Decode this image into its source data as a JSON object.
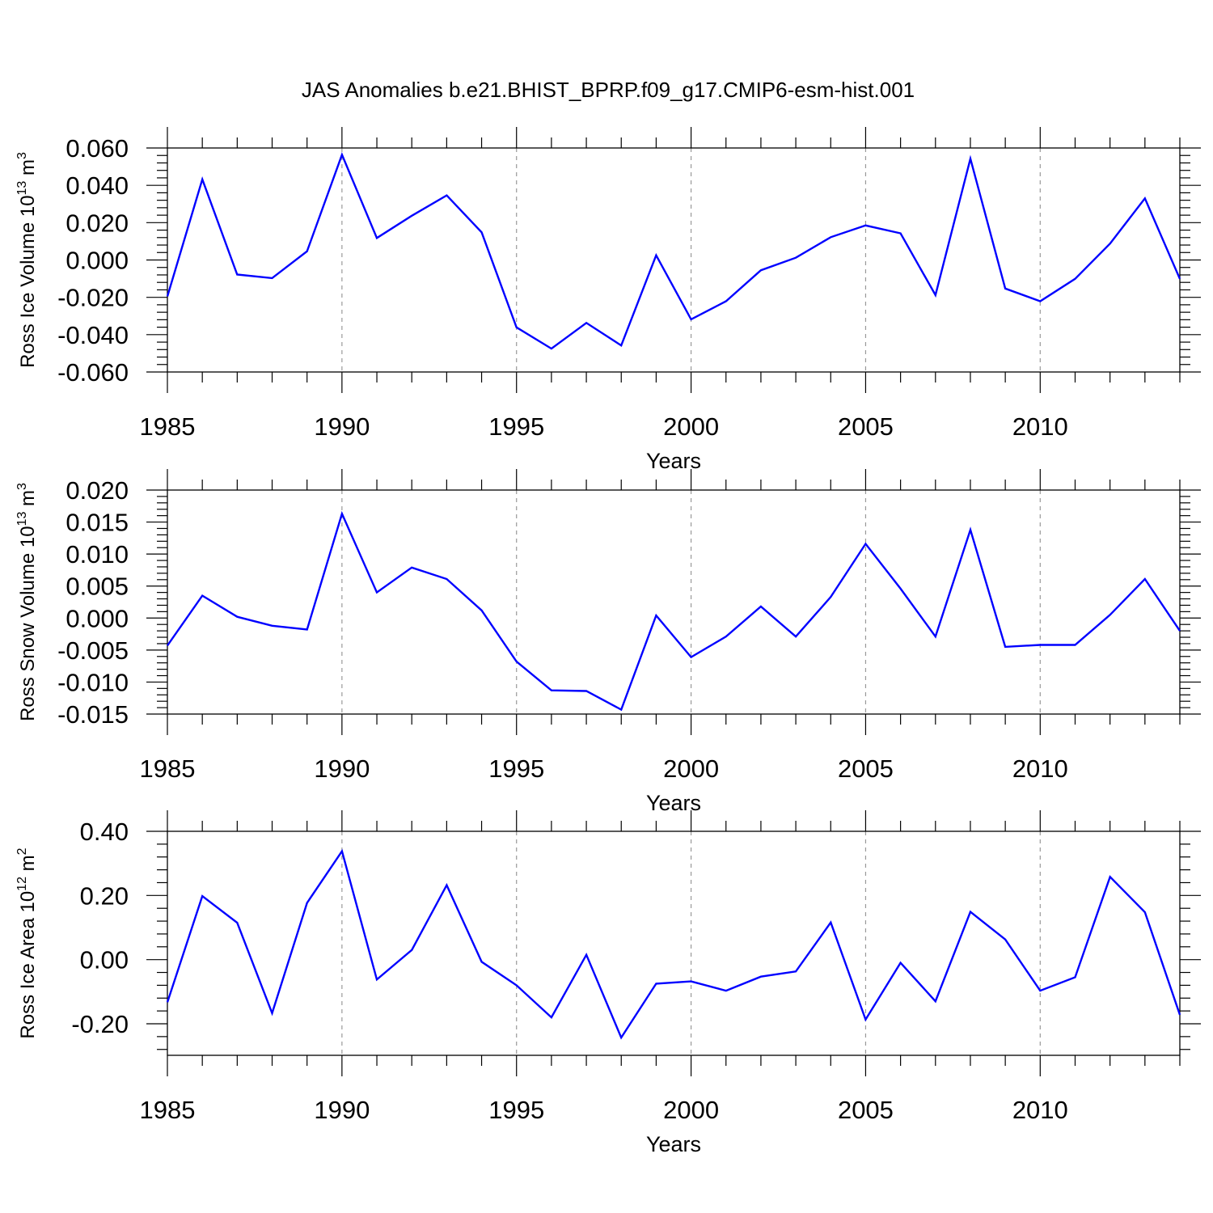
{
  "title": "JAS Anomalies b.e21.BHIST_BPRP.f09_g17.CMIP6-esm-hist.001",
  "chart_data": [
    {
      "type": "line",
      "ylabel_text": "Ross Ice Volume 10",
      "ylabel_exp": "13",
      "ylabel_unit": " m",
      "ylabel_unit_exp": "3",
      "xlabel": "Years",
      "xlim": [
        1985,
        2014
      ],
      "ylim": [
        -0.06,
        0.06
      ],
      "yticks": [
        -0.06,
        -0.04,
        -0.02,
        0.0,
        0.02,
        0.04,
        0.06
      ],
      "ytick_labels": [
        "-0.060",
        "-0.040",
        "-0.020",
        "0.000",
        "0.020",
        "0.040",
        "0.060"
      ],
      "xticks": [
        1985,
        1990,
        1995,
        2000,
        2005,
        2010
      ],
      "xtick_labels": [
        "1985",
        "1990",
        "1995",
        "2000",
        "2005",
        "2010"
      ],
      "grid": "vertical dashed at major x ticks",
      "line_color": "#0000ff",
      "x": [
        1985,
        1986,
        1987,
        1988,
        1989,
        1990,
        1991,
        1992,
        1993,
        1994,
        1995,
        1996,
        1997,
        1998,
        1999,
        2000,
        2001,
        2002,
        2003,
        2004,
        2005,
        2006,
        2007,
        2008,
        2009,
        2010,
        2011,
        2012,
        2013,
        2014
      ],
      "y": [
        -0.0195,
        0.0432,
        -0.0078,
        -0.0097,
        0.0047,
        0.0564,
        0.0118,
        0.0237,
        0.0346,
        0.0148,
        -0.0361,
        -0.0475,
        -0.0337,
        -0.0458,
        0.0025,
        -0.0318,
        -0.0221,
        -0.0055,
        0.0012,
        0.0122,
        0.0185,
        0.0143,
        -0.0188,
        0.0543,
        -0.0153,
        -0.0221,
        -0.0101,
        0.0088,
        0.033,
        -0.0101
      ]
    },
    {
      "type": "line",
      "ylabel_text": "Ross Snow Volume 10",
      "ylabel_exp": "13",
      "ylabel_unit": " m",
      "ylabel_unit_exp": "3",
      "xlabel": "Years",
      "xlim": [
        1985,
        2014
      ],
      "ylim": [
        -0.015,
        0.02
      ],
      "yticks": [
        -0.015,
        -0.01,
        -0.005,
        0.0,
        0.005,
        0.01,
        0.015,
        0.02
      ],
      "ytick_labels": [
        "-0.015",
        "-0.010",
        "-0.005",
        "0.000",
        "0.005",
        "0.010",
        "0.015",
        "0.020"
      ],
      "xticks": [
        1985,
        1990,
        1995,
        2000,
        2005,
        2010
      ],
      "xtick_labels": [
        "1985",
        "1990",
        "1995",
        "2000",
        "2005",
        "2010"
      ],
      "grid": "vertical dashed at major x ticks",
      "line_color": "#0000ff",
      "x": [
        1985,
        1986,
        1987,
        1988,
        1989,
        1990,
        1991,
        1992,
        1993,
        1994,
        1995,
        1996,
        1997,
        1998,
        1999,
        2000,
        2001,
        2002,
        2003,
        2004,
        2005,
        2006,
        2007,
        2008,
        2009,
        2010,
        2011,
        2012,
        2013,
        2014
      ],
      "y": [
        -0.0043,
        0.0035,
        0.0002,
        -0.0012,
        -0.0018,
        0.0163,
        0.004,
        0.0079,
        0.0061,
        0.0012,
        -0.0068,
        -0.0113,
        -0.0114,
        -0.0143,
        0.0004,
        -0.0061,
        -0.0029,
        0.0018,
        -0.0029,
        0.0033,
        0.0116,
        0.0046,
        -0.0029,
        0.0138,
        -0.0045,
        -0.0042,
        -0.0042,
        0.0005,
        0.0061,
        -0.002
      ]
    },
    {
      "type": "line",
      "ylabel_text": "Ross Ice Area 10",
      "ylabel_exp": "12",
      "ylabel_unit": " m",
      "ylabel_unit_exp": "2",
      "xlabel": "Years",
      "xlim": [
        1985,
        2014
      ],
      "ylim": [
        -0.3,
        0.4
      ],
      "yticks": [
        -0.2,
        0.0,
        0.2,
        0.4
      ],
      "ytick_labels": [
        "-0.20",
        "0.00",
        "0.20",
        "0.40"
      ],
      "xticks": [
        1985,
        1990,
        1995,
        2000,
        2005,
        2010
      ],
      "xtick_labels": [
        "1985",
        "1990",
        "1995",
        "2000",
        "2005",
        "2010"
      ],
      "grid": "vertical dashed at major x ticks",
      "line_color": "#0000ff",
      "x": [
        1985,
        1986,
        1987,
        1988,
        1989,
        1990,
        1991,
        1992,
        1993,
        1994,
        1995,
        1996,
        1997,
        1998,
        1999,
        2000,
        2001,
        2002,
        2003,
        2004,
        2005,
        2006,
        2007,
        2008,
        2009,
        2010,
        2011,
        2012,
        2013,
        2014
      ],
      "y": [
        -0.133,
        0.198,
        0.115,
        -0.167,
        0.177,
        0.338,
        -0.062,
        0.03,
        0.232,
        -0.007,
        -0.08,
        -0.18,
        0.015,
        -0.243,
        -0.075,
        -0.068,
        -0.097,
        -0.053,
        -0.037,
        0.116,
        -0.187,
        -0.01,
        -0.13,
        0.149,
        0.063,
        -0.097,
        -0.055,
        0.258,
        0.148,
        -0.172
      ]
    }
  ]
}
